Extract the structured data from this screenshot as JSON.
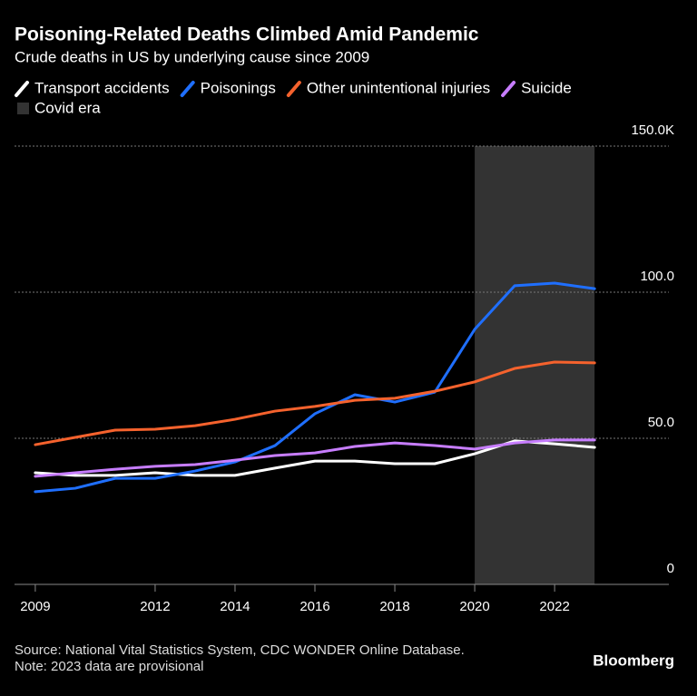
{
  "chart_data": {
    "type": "line",
    "title": "Poisoning-Related Deaths Climbed Amid Pandemic",
    "subtitle": "Crude deaths in US by underlying cause since 2009",
    "x": [
      2009,
      2010,
      2011,
      2012,
      2013,
      2014,
      2015,
      2016,
      2017,
      2018,
      2019,
      2020,
      2021,
      2022,
      2023
    ],
    "series": [
      {
        "name": "Transport accidents",
        "color": "#ffffff",
        "values": [
          38.2,
          37.3,
          37.3,
          38.2,
          37.3,
          37.3,
          39.8,
          42.2,
          42.2,
          41.3,
          41.3,
          44.7,
          49.1,
          48.1,
          46.9
        ]
      },
      {
        "name": "Poisonings",
        "color": "#1f6fff",
        "values": [
          31.7,
          32.9,
          36.3,
          36.3,
          38.8,
          41.9,
          47.5,
          58.4,
          64.9,
          62.4,
          65.8,
          87.3,
          102.2,
          103.1,
          101.2
        ]
      },
      {
        "name": "Other unintentional injuries",
        "color": "#f5622d",
        "values": [
          47.8,
          50.3,
          52.8,
          53.1,
          54.3,
          56.5,
          59.3,
          60.9,
          63.0,
          63.7,
          66.1,
          69.3,
          73.9,
          76.1,
          75.8
        ]
      },
      {
        "name": "Suicide",
        "color": "#c77dff",
        "values": [
          37.0,
          38.2,
          39.4,
          40.4,
          41.0,
          42.5,
          44.1,
          45.0,
          47.2,
          48.4,
          47.5,
          46.3,
          48.4,
          49.4,
          49.4
        ]
      }
    ],
    "shaded_region": {
      "name": "Covid era",
      "color": "#333333",
      "x": [
        2020,
        2023
      ]
    },
    "xlim": [
      2008.48,
      2024.86
    ],
    "ylim": [
      0,
      150
    ],
    "xticks": [
      2009,
      2012,
      2014,
      2016,
      2018,
      2020,
      2022
    ],
    "yticks": [
      0,
      {
        "value": 50,
        "label": "50.0"
      },
      {
        "value": 100,
        "label": "100.0"
      },
      {
        "value": 150,
        "label": "150.0K"
      }
    ],
    "grid": true,
    "source": "Source: National Vital Statistics System, CDC WONDER Online Database.",
    "note": "Note: 2023 data are provisional",
    "brand": "Bloomberg"
  }
}
